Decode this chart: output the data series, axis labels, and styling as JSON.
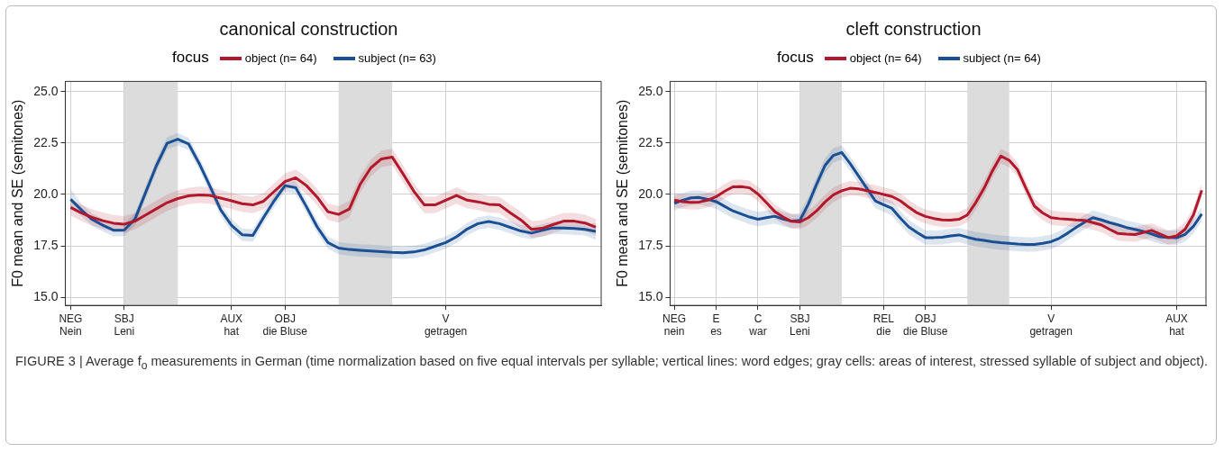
{
  "chart_data": [
    {
      "type": "line",
      "title": "canonical construction",
      "legend_title": "focus",
      "legend": "top",
      "ylabel": "F0 mean and SE (semitones)",
      "grid": true,
      "categories": [
        "NEG\nNein",
        null,
        null,
        null,
        null,
        "SBJ\nLeni",
        null,
        null,
        null,
        null,
        null,
        null,
        null,
        null,
        null,
        "AUX\nhat",
        null,
        null,
        null,
        null,
        "OBJ\ndie Bluse",
        null,
        null,
        null,
        null,
        null,
        null,
        null,
        null,
        null,
        null,
        null,
        null,
        null,
        null,
        "V\ngetragen",
        null,
        null,
        null,
        null,
        null,
        null,
        null,
        null,
        null,
        null,
        null,
        null,
        null,
        null
      ],
      "ylim": [
        14.6,
        25.5
      ],
      "yticks": [
        {
          "value": 15,
          "label": "15.0"
        },
        {
          "value": 17.5,
          "label": "17.5"
        },
        {
          "value": 20,
          "label": "20.0"
        },
        {
          "value": 22.5,
          "label": "22.5"
        },
        {
          "value": 25,
          "label": "25.0"
        }
      ],
      "annotations": [
        "FIGURE 3 | Average f$_{o}$ measurements in German (time normalization based on five equal intervals per syllable; vertical lines: word edges; gray cells: areas of interest, stressed syllable of subject and object)."
      ],
      "series": [
        {
          "name": "object (n= 64)",
          "color": "#b2182b",
          "values": [
            19.37,
            19.1,
            18.88,
            18.72,
            18.6,
            18.55,
            18.7,
            19.0,
            19.3,
            19.6,
            19.8,
            19.93,
            19.98,
            19.95,
            19.82,
            19.69,
            19.55,
            19.49,
            19.67,
            20.15,
            20.63,
            20.81,
            20.43,
            19.87,
            19.16,
            19.03,
            19.29,
            20.48,
            21.29,
            21.73,
            21.82,
            21.01,
            20.17,
            19.49,
            19.49,
            19.72,
            19.95,
            19.72,
            19.64,
            19.52,
            19.49,
            19.11,
            18.76,
            18.3,
            18.35,
            18.53,
            18.7,
            18.7,
            18.61,
            18.4
          ],
          "lower": [
            18.97,
            18.7,
            18.48,
            18.32,
            18.2,
            18.15,
            18.3,
            18.6,
            18.9,
            19.2,
            19.4,
            19.53,
            19.58,
            19.55,
            19.42,
            19.29,
            19.15,
            19.09,
            19.27,
            19.75,
            20.23,
            20.41,
            20.03,
            19.47,
            18.76,
            18.63,
            18.89,
            20.08,
            20.89,
            21.33,
            21.42,
            20.61,
            19.77,
            19.09,
            19.09,
            19.32,
            19.55,
            19.32,
            19.24,
            19.12,
            19.09,
            18.71,
            18.36,
            17.9,
            17.95,
            18.13,
            18.3,
            18.3,
            18.21,
            18.0
          ],
          "upper": [
            19.77,
            19.5,
            19.28,
            19.12,
            19.0,
            18.95,
            19.1,
            19.4,
            19.7,
            20.0,
            20.2,
            20.33,
            20.38,
            20.35,
            20.22,
            20.09,
            19.95,
            19.89,
            20.07,
            20.55,
            21.03,
            21.21,
            20.83,
            20.27,
            19.56,
            19.43,
            19.69,
            20.88,
            21.69,
            22.13,
            22.22,
            21.41,
            20.57,
            19.89,
            19.89,
            20.12,
            20.35,
            20.12,
            20.04,
            19.92,
            19.89,
            19.51,
            19.16,
            18.7,
            18.75,
            18.93,
            19.1,
            19.1,
            19.01,
            18.8
          ]
        },
        {
          "name": "subject (n= 63)",
          "color": "#1b4f93",
          "values": [
            19.76,
            19.25,
            18.78,
            18.5,
            18.26,
            18.27,
            18.8,
            20.1,
            21.4,
            22.49,
            22.69,
            22.46,
            21.5,
            20.4,
            19.25,
            18.5,
            18.04,
            18.0,
            18.88,
            19.7,
            20.43,
            20.33,
            19.4,
            18.42,
            17.66,
            17.39,
            17.32,
            17.28,
            17.25,
            17.22,
            17.18,
            17.16,
            17.2,
            17.3,
            17.48,
            17.66,
            17.94,
            18.32,
            18.58,
            18.68,
            18.58,
            18.4,
            18.22,
            18.12,
            18.25,
            18.37,
            18.37,
            18.34,
            18.3,
            18.2
          ],
          "lower": [
            19.26,
            18.95,
            18.48,
            18.2,
            17.96,
            17.97,
            18.5,
            19.8,
            21.1,
            22.19,
            22.39,
            22.16,
            21.2,
            20.1,
            18.95,
            18.2,
            17.74,
            17.7,
            18.58,
            19.4,
            20.13,
            20.03,
            19.1,
            18.12,
            17.36,
            17.09,
            17.02,
            16.98,
            16.95,
            16.92,
            16.88,
            16.86,
            16.9,
            17.0,
            17.18,
            17.36,
            17.64,
            18.02,
            18.28,
            18.38,
            18.28,
            18.1,
            17.92,
            17.82,
            17.95,
            18.07,
            18.07,
            18.04,
            18.0,
            17.8
          ],
          "upper": [
            20.26,
            19.55,
            19.08,
            18.8,
            18.56,
            18.57,
            19.1,
            20.4,
            21.7,
            22.79,
            22.99,
            22.76,
            21.8,
            20.7,
            19.55,
            18.8,
            18.34,
            18.3,
            19.18,
            20.0,
            20.73,
            20.63,
            19.7,
            18.72,
            17.96,
            17.69,
            17.62,
            17.58,
            17.55,
            17.52,
            17.48,
            17.46,
            17.5,
            17.6,
            17.78,
            17.96,
            18.24,
            18.62,
            18.88,
            18.98,
            18.88,
            18.7,
            18.52,
            18.42,
            18.55,
            18.67,
            18.67,
            18.64,
            18.6,
            18.6
          ]
        }
      ]
    },
    {
      "type": "line",
      "title": "cleft construction",
      "legend_title": "focus",
      "legend": "top",
      "ylabel": "F0 mean and SE (semitones)",
      "grid": true,
      "categories": [
        "NEG\nnein",
        null,
        null,
        null,
        null,
        "E\nes",
        null,
        null,
        null,
        null,
        "C\nwar",
        null,
        null,
        null,
        null,
        "SBJ\nLeni",
        null,
        null,
        null,
        null,
        null,
        null,
        null,
        null,
        null,
        "REL\ndie",
        null,
        null,
        null,
        null,
        "OBJ\ndie Bluse",
        null,
        null,
        null,
        null,
        null,
        null,
        null,
        null,
        null,
        null,
        null,
        null,
        null,
        null,
        "V\ngetragen",
        null,
        null,
        null,
        null,
        null,
        null,
        null,
        null,
        null,
        null,
        null,
        null,
        null,
        null,
        "AUX\nhat",
        null,
        null,
        null
      ],
      "ylim": [
        14.6,
        25.5
      ],
      "yticks": [
        {
          "value": 15,
          "label": "15.0"
        },
        {
          "value": 17.5,
          "label": "17.5"
        },
        {
          "value": 20,
          "label": "20.0"
        },
        {
          "value": 22.5,
          "label": "22.5"
        },
        {
          "value": 25,
          "label": "25.0"
        }
      ],
      "series": [
        {
          "name": "object (n= 64)",
          "color": "#b2182b",
          "values": [
            19.72,
            19.65,
            19.61,
            19.63,
            19.72,
            19.89,
            20.15,
            20.37,
            20.38,
            20.32,
            20.02,
            19.6,
            19.17,
            18.9,
            18.69,
            18.66,
            18.87,
            19.2,
            19.63,
            19.98,
            20.18,
            20.3,
            20.27,
            20.18,
            20.1,
            20.0,
            19.9,
            19.69,
            19.38,
            19.1,
            18.93,
            18.83,
            18.76,
            18.75,
            18.79,
            19.0,
            19.6,
            20.3,
            21.15,
            21.87,
            21.66,
            21.2,
            20.3,
            19.44,
            19.1,
            18.87,
            18.82,
            18.79,
            18.76,
            18.74,
            18.63,
            18.52,
            18.3,
            18.1,
            18.07,
            18.05,
            18.15,
            18.25,
            18.07,
            17.9,
            17.98,
            18.3,
            19.0,
            20.2
          ],
          "lower": [
            19.37,
            19.3,
            19.26,
            19.28,
            19.37,
            19.54,
            19.8,
            20.02,
            20.03,
            19.97,
            19.67,
            19.25,
            18.82,
            18.55,
            18.34,
            18.31,
            18.52,
            18.85,
            19.28,
            19.63,
            19.83,
            19.95,
            19.92,
            19.83,
            19.75,
            19.65,
            19.55,
            19.34,
            19.03,
            18.75,
            18.58,
            18.48,
            18.41,
            18.4,
            18.44,
            18.65,
            19.25,
            19.95,
            20.8,
            21.52,
            21.31,
            20.85,
            19.95,
            19.09,
            18.75,
            18.52,
            18.47,
            18.44,
            18.41,
            18.39,
            18.28,
            18.17,
            17.95,
            17.75,
            17.72,
            17.7,
            17.8,
            17.9,
            17.72,
            17.55,
            17.63,
            17.95,
            18.65,
            19.85
          ],
          "upper": [
            20.07,
            20.0,
            19.96,
            19.98,
            20.07,
            20.24,
            20.5,
            20.72,
            20.73,
            20.67,
            20.37,
            19.95,
            19.52,
            19.25,
            19.04,
            19.01,
            19.22,
            19.55,
            19.98,
            20.33,
            20.53,
            20.65,
            20.62,
            20.53,
            20.45,
            20.35,
            20.25,
            20.04,
            19.73,
            19.45,
            19.28,
            19.18,
            19.11,
            19.1,
            19.14,
            19.35,
            19.95,
            20.65,
            21.5,
            22.22,
            22.01,
            21.55,
            20.65,
            19.79,
            19.45,
            19.22,
            19.17,
            19.14,
            19.11,
            19.09,
            18.98,
            18.87,
            18.65,
            18.45,
            18.42,
            18.4,
            18.5,
            18.6,
            18.42,
            18.25,
            18.33,
            18.65,
            19.35,
            20.55
          ]
        },
        {
          "name": "subject (n= 64)",
          "color": "#1b4f93",
          "values": [
            19.57,
            19.72,
            19.83,
            19.85,
            19.76,
            19.65,
            19.42,
            19.2,
            19.05,
            18.9,
            18.79,
            18.87,
            18.94,
            18.8,
            18.7,
            18.74,
            19.52,
            20.5,
            21.41,
            21.9,
            22.04,
            21.5,
            20.9,
            20.3,
            19.69,
            19.5,
            19.32,
            18.85,
            18.42,
            18.15,
            17.9,
            17.9,
            17.92,
            17.98,
            18.03,
            17.92,
            17.82,
            17.76,
            17.7,
            17.65,
            17.62,
            17.59,
            17.57,
            17.57,
            17.62,
            17.7,
            17.87,
            18.12,
            18.4,
            18.65,
            18.87,
            18.76,
            18.63,
            18.52,
            18.39,
            18.3,
            18.2,
            18.08,
            17.94,
            17.9,
            17.89,
            18.05,
            18.45,
            19.05
          ],
          "lower": [
            19.22,
            19.37,
            19.48,
            19.5,
            19.41,
            19.3,
            19.07,
            18.85,
            18.7,
            18.55,
            18.44,
            18.52,
            18.59,
            18.45,
            18.35,
            18.39,
            19.17,
            20.15,
            21.06,
            21.55,
            21.69,
            21.15,
            20.55,
            19.95,
            19.34,
            19.15,
            18.97,
            18.5,
            18.07,
            17.8,
            17.55,
            17.55,
            17.57,
            17.63,
            17.68,
            17.57,
            17.47,
            17.41,
            17.35,
            17.3,
            17.27,
            17.24,
            17.22,
            17.22,
            17.27,
            17.35,
            17.52,
            17.77,
            18.05,
            18.3,
            18.52,
            18.41,
            18.28,
            18.17,
            18.04,
            17.95,
            17.85,
            17.73,
            17.59,
            17.55,
            17.54,
            17.7,
            18.1,
            18.7
          ],
          "upper": [
            19.92,
            20.07,
            20.18,
            20.2,
            20.11,
            20.0,
            19.77,
            19.55,
            19.4,
            19.25,
            19.14,
            19.22,
            19.29,
            19.15,
            19.05,
            19.09,
            19.87,
            20.85,
            21.76,
            22.25,
            22.39,
            21.85,
            21.25,
            20.65,
            20.04,
            19.85,
            19.67,
            19.2,
            18.77,
            18.5,
            18.25,
            18.25,
            18.27,
            18.33,
            18.38,
            18.27,
            18.17,
            18.11,
            18.05,
            18.0,
            17.97,
            17.94,
            17.92,
            17.92,
            17.97,
            18.05,
            18.22,
            18.47,
            18.75,
            19.0,
            19.22,
            19.11,
            18.98,
            18.87,
            18.74,
            18.65,
            18.55,
            18.43,
            18.29,
            18.25,
            18.24,
            18.4,
            18.8,
            19.4
          ]
        }
      ]
    }
  ]
}
